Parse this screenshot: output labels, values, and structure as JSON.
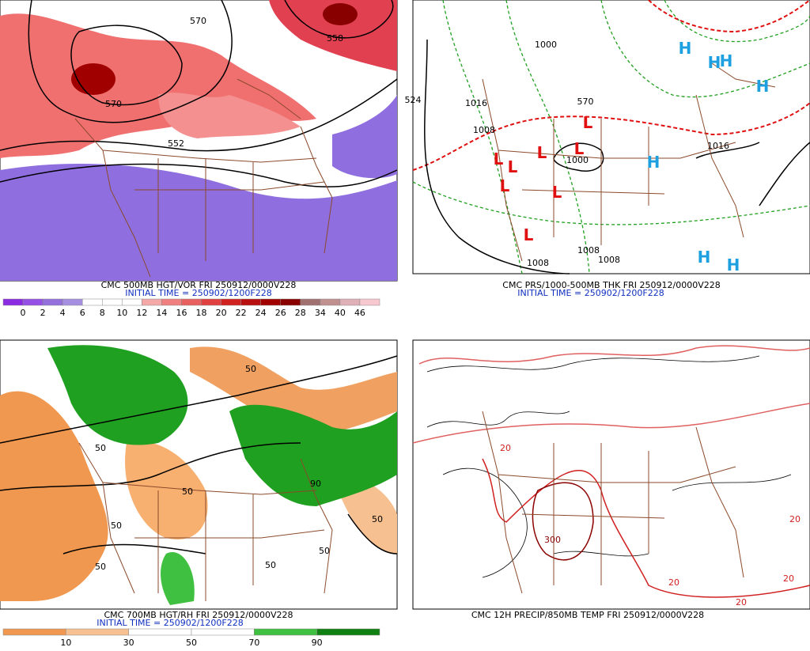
{
  "panels": [
    {
      "title": "CMC 500MB HGT/VOR FRI 250912/0000V228",
      "initial": "INITIAL TIME = 250902/1200F228",
      "colorbar": {
        "labels": [
          "0",
          "2",
          "4",
          "6",
          "8",
          "10",
          "12",
          "14",
          "16",
          "18",
          "20",
          "22",
          "24",
          "26",
          "28",
          "34",
          "40",
          "46"
        ],
        "colors": [
          "#8a2be2",
          "#9650e6",
          "#9370db",
          "#a58fe0",
          "#ffffff",
          "#ffffff",
          "#ffffff",
          "#f4a8a8",
          "#f08080",
          "#e86060",
          "#e04040",
          "#d02020",
          "#b81010",
          "#a00000",
          "#880000",
          "#a07070",
          "#c09090",
          "#e0b0b8",
          "#f8c8d0"
        ]
      },
      "labels": [
        "570",
        "558",
        "570",
        "552"
      ]
    },
    {
      "title": "CMC PRS/1000-500MB THK FRI 250912/0000V228",
      "initial": "INITIAL TIME = 250902/1200F228",
      "labels": [
        "H",
        "H",
        "H",
        "H",
        "H",
        "H",
        "H",
        "L",
        "L",
        "L",
        "L",
        "L",
        "L",
        "L",
        "L",
        "1000",
        "1008",
        "1016",
        "1000",
        "1008",
        "1008",
        "1008",
        "1016",
        "570",
        "524"
      ]
    },
    {
      "title": "CMC 700MB HGT/RH FRI 250912/0000V228",
      "initial": "INITIAL TIME = 250902/1200F228",
      "colorbar": {
        "labels": [
          "10",
          "30",
          "50",
          "70",
          "90"
        ],
        "colors": [
          "#f09850",
          "#f7c090",
          "#ffffff",
          "#ffffff",
          "#40c040",
          "#108010"
        ]
      },
      "labels": [
        "50",
        "50",
        "50",
        "50",
        "50",
        "50",
        "90",
        "50",
        "50"
      ]
    },
    {
      "title": "CMC 12H PRECIP/850MB TEMP FRI 250912/0000V228",
      "labels": [
        "20",
        "20",
        "20",
        "20",
        "300",
        "20"
      ]
    }
  ]
}
